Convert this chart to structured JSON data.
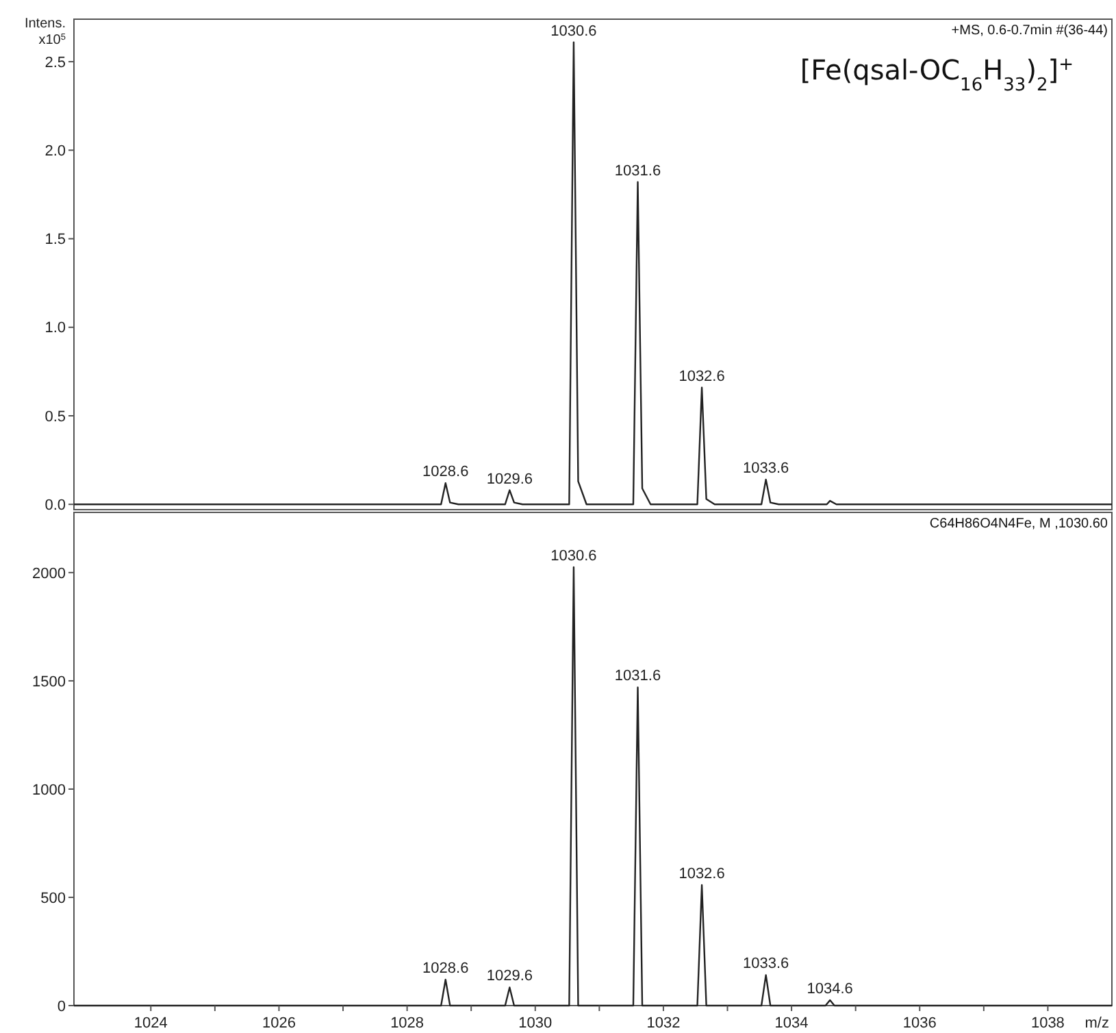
{
  "chart_data": [
    {
      "type": "line",
      "ylabel": "Intens.\nx10$^{5}$",
      "xlim": [
        1022.8,
        1039.0
      ],
      "ylim": [
        -0.03,
        2.74
      ],
      "yticks": [
        {
          "value": 0,
          "label": "0.0"
        },
        {
          "value": 0.5,
          "label": "0.5"
        },
        {
          "value": 1,
          "label": "1.0"
        },
        {
          "value": 1.5,
          "label": "1.5"
        },
        {
          "value": 2,
          "label": "2.0"
        },
        {
          "value": 2.5,
          "label": "2.5"
        }
      ],
      "tick_labels": "y",
      "grid": false,
      "marker": "none",
      "line_style": "solid",
      "series": [
        {
          "color": "#222222",
          "x": [
            1022.8,
            1028.53,
            1028.6,
            1028.67,
            1028.8,
            1029.53,
            1029.6,
            1029.67,
            1029.8,
            1030.53,
            1030.6,
            1030.67,
            1030.8,
            1031.53,
            1031.6,
            1031.67,
            1031.8,
            1032.53,
            1032.6,
            1032.67,
            1032.8,
            1033.53,
            1033.6,
            1033.67,
            1033.8,
            1034.55,
            1034.6,
            1034.7,
            1039.0
          ],
          "values": [
            0,
            0,
            0.12,
            0.01,
            0,
            0,
            0.08,
            0.01,
            0,
            0,
            2.61,
            0.13,
            0,
            0,
            1.82,
            0.09,
            0,
            0,
            0.66,
            0.03,
            0,
            0,
            0.14,
            0.01,
            0,
            0,
            0.02,
            0,
            0
          ]
        }
      ],
      "annotations": [
        "+MS, 0.6-0.7min #(36-44)",
        "[Fe(qsal-OC$_{16}$H$_{33}$)$_{2}$]$^{+}$",
        {
          "text": "1028.6",
          "x": 1028.6,
          "y": 0.12
        },
        {
          "text": "1029.6",
          "x": 1029.6,
          "y": 0.08
        },
        {
          "text": "1030.6",
          "x": 1030.6,
          "y": 2.61
        },
        {
          "text": "1031.6",
          "x": 1031.6,
          "y": 1.82
        },
        {
          "text": "1032.6",
          "x": 1032.6,
          "y": 0.66
        },
        {
          "text": "1033.6",
          "x": 1033.6,
          "y": 0.14
        }
      ]
    },
    {
      "type": "line",
      "xlabel": "m/z",
      "xlim": [
        1022.8,
        1039.0
      ],
      "ylim": [
        0,
        2278
      ],
      "xticks": [
        1024,
        {
          "value": 1025,
          "label": null
        },
        1026,
        {
          "value": 1027,
          "label": null
        },
        1028,
        {
          "value": 1029,
          "label": null
        },
        1030,
        {
          "value": 1031,
          "label": null
        },
        1032,
        {
          "value": 1033,
          "label": null
        },
        1034,
        {
          "value": 1035,
          "label": null
        },
        1036,
        {
          "value": 1037,
          "label": null
        },
        1038
      ],
      "yticks": [
        0,
        500,
        1000,
        1500,
        2000
      ],
      "grid": false,
      "marker": "none",
      "line_style": "solid",
      "series": [
        {
          "color": "#222222",
          "x": [
            1022.8,
            1028.53,
            1028.6,
            1028.67,
            1029.53,
            1029.6,
            1029.67,
            1030.53,
            1030.6,
            1030.67,
            1031.53,
            1031.6,
            1031.67,
            1032.53,
            1032.6,
            1032.67,
            1033.53,
            1033.6,
            1033.67,
            1034.53,
            1034.6,
            1034.67,
            1039.0
          ],
          "values": [
            0,
            0,
            120,
            0,
            0,
            84,
            0,
            0,
            2025,
            0,
            0,
            1470,
            0,
            0,
            557,
            0,
            0,
            141,
            0,
            0,
            25,
            0,
            0
          ]
        }
      ],
      "annotations": [
        "C64H86O4N4Fe, M ,1030.60",
        {
          "text": "1028.6",
          "x": 1028.6,
          "y": 120
        },
        {
          "text": "1029.6",
          "x": 1029.6,
          "y": 84
        },
        {
          "text": "1030.6",
          "x": 1030.6,
          "y": 2025
        },
        {
          "text": "1031.6",
          "x": 1031.6,
          "y": 1470
        },
        {
          "text": "1032.6",
          "x": 1032.6,
          "y": 557
        },
        {
          "text": "1033.6",
          "x": 1033.6,
          "y": 141
        },
        {
          "text": "1034.6",
          "x": 1034.6,
          "y": 25
        }
      ]
    }
  ]
}
